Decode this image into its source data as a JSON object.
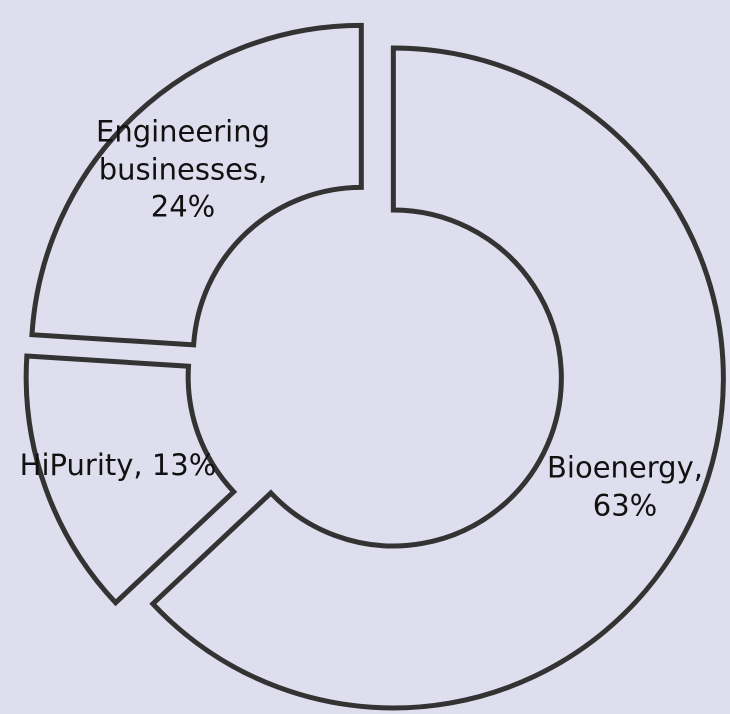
{
  "chart_data": {
    "type": "donut",
    "labels": [
      "Bioenergy, 63%",
      "HiPurity, 13%",
      "Engineering businesses, 24%"
    ],
    "values": [
      63,
      13,
      24
    ],
    "stroke": "#333333",
    "fill": "none"
  }
}
